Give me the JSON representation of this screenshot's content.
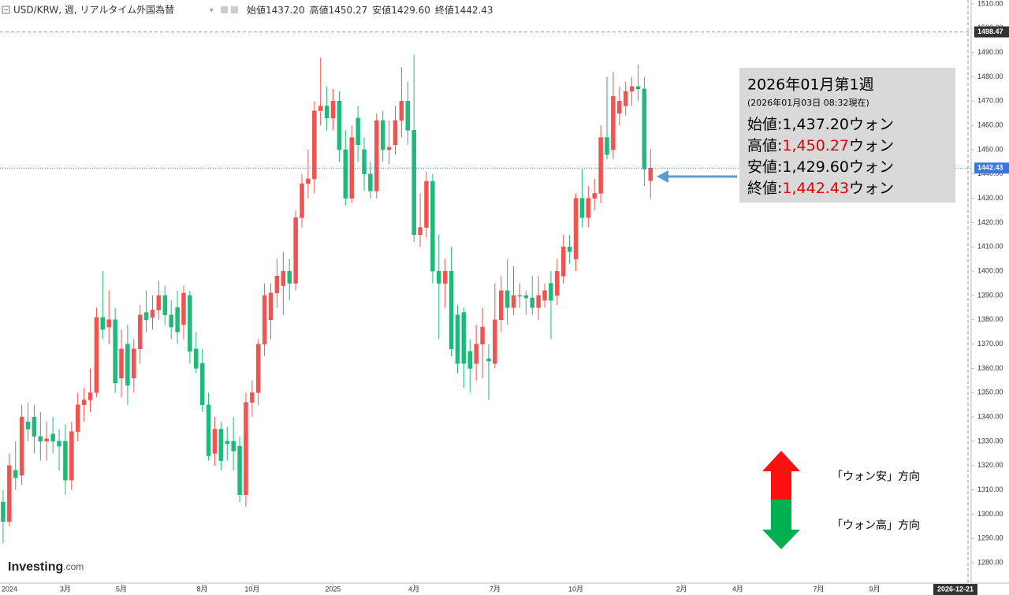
{
  "chart_data": {
    "type": "candlestick",
    "title": "USD/KRW, 週, リアルタイム外国為替",
    "legend": {
      "labels": [
        "始値",
        "高値",
        "安値",
        "終値"
      ],
      "values": [
        "1437.20",
        "1450.27",
        "1429.60",
        "1442.43"
      ]
    },
    "colors": {
      "up": "#f05350",
      "down": "#1fb97a"
    },
    "open": [
      1305,
      1297,
      1318,
      1316,
      1338,
      1340,
      1332,
      1330,
      1333,
      1330,
      1330,
      1314,
      1334,
      1345,
      1347,
      1350,
      1381,
      1377,
      1380,
      1356,
      1370,
      1356,
      1368,
      1383,
      1381,
      1384,
      1390,
      1382,
      1385,
      1378,
      1390,
      1368,
      1362,
      1345,
      1325,
      1335,
      1330,
      1330,
      1328,
      1308,
      1346,
      1350,
      1370,
      1380,
      1391,
      1394,
      1400,
      1395,
      1422,
      1436,
      1438,
      1466,
      1468,
      1463,
      1470,
      1450,
      1430,
      1463,
      1450,
      1440,
      1433,
      1462,
      1450,
      1452,
      1462,
      1470,
      1458,
      1415,
      1418,
      1437,
      1400,
      1395,
      1400,
      1382,
      1383,
      1367,
      1362,
      1370,
      1364,
      1362,
      1380,
      1392,
      1385,
      1390,
      1390,
      1389,
      1385,
      1388,
      1395,
      1390,
      1398,
      1410,
      1405,
      1430,
      1422,
      1430,
      1432,
      1455,
      1450,
      1465,
      1468,
      1474,
      1476,
      1475,
      1437.2
    ],
    "high": [
      1310,
      1325,
      1330,
      1345,
      1346,
      1345,
      1342,
      1338,
      1340,
      1335,
      1337,
      1338,
      1350,
      1352,
      1360,
      1385,
      1400,
      1392,
      1385,
      1376,
      1378,
      1372,
      1386,
      1392,
      1390,
      1396,
      1394,
      1388,
      1392,
      1394,
      1392,
      1375,
      1368,
      1350,
      1340,
      1338,
      1336,
      1340,
      1332,
      1350,
      1355,
      1372,
      1395,
      1395,
      1405,
      1408,
      1405,
      1425,
      1440,
      1450,
      1470,
      1488,
      1476,
      1475,
      1474,
      1458,
      1460,
      1468,
      1455,
      1445,
      1465,
      1466,
      1462,
      1468,
      1484,
      1478,
      1489,
      1432,
      1441,
      1440,
      1415,
      1405,
      1410,
      1386,
      1385,
      1372,
      1378,
      1385,
      1370,
      1395,
      1398,
      1405,
      1402,
      1395,
      1392,
      1398,
      1398,
      1395,
      1400,
      1405,
      1415,
      1415,
      1432,
      1442,
      1435,
      1438,
      1460,
      1480,
      1482,
      1476,
      1478,
      1480,
      1485,
      1480,
      1450.27
    ],
    "low": [
      1288,
      1295,
      1310,
      1312,
      1330,
      1325,
      1322,
      1322,
      1325,
      1318,
      1308,
      1310,
      1330,
      1338,
      1342,
      1348,
      1372,
      1370,
      1350,
      1348,
      1345,
      1350,
      1362,
      1375,
      1376,
      1380,
      1378,
      1372,
      1370,
      1372,
      1362,
      1358,
      1342,
      1322,
      1320,
      1318,
      1322,
      1318,
      1305,
      1303,
      1340,
      1345,
      1365,
      1372,
      1385,
      1382,
      1388,
      1392,
      1418,
      1430,
      1432,
      1460,
      1458,
      1458,
      1445,
      1427,
      1428,
      1445,
      1433,
      1430,
      1430,
      1445,
      1444,
      1448,
      1455,
      1452,
      1412,
      1410,
      1414,
      1395,
      1372,
      1385,
      1365,
      1358,
      1352,
      1350,
      1355,
      1356,
      1347,
      1360,
      1375,
      1378,
      1382,
      1385,
      1382,
      1382,
      1380,
      1385,
      1372,
      1386,
      1395,
      1403,
      1400,
      1418,
      1418,
      1425,
      1428,
      1446,
      1446,
      1460,
      1464,
      1468,
      1470,
      1435,
      1429.6
    ],
    "close": [
      1297,
      1320,
      1315,
      1340,
      1335,
      1332,
      1330,
      1331,
      1330,
      1328,
      1314,
      1334,
      1345,
      1347,
      1350,
      1381,
      1376,
      1380,
      1354,
      1368,
      1353,
      1368,
      1382,
      1380,
      1384,
      1390,
      1382,
      1377,
      1375,
      1391,
      1367,
      1360,
      1345,
      1324,
      1335,
      1322,
      1329,
      1326,
      1308,
      1346,
      1350,
      1370,
      1390,
      1391,
      1398,
      1400,
      1395,
      1422,
      1436,
      1438,
      1466,
      1468,
      1463,
      1470,
      1450,
      1430,
      1455,
      1452,
      1440,
      1433,
      1462,
      1450,
      1451,
      1462,
      1470,
      1458,
      1415,
      1418,
      1437,
      1400,
      1395,
      1400,
      1368,
      1362,
      1362,
      1360,
      1370,
      1377,
      1363,
      1380,
      1392,
      1385,
      1390,
      1390,
      1389,
      1385,
      1390,
      1392,
      1388,
      1400,
      1410,
      1408,
      1430,
      1422,
      1430,
      1432,
      1455,
      1448,
      1472,
      1470,
      1474,
      1476,
      1475,
      1442,
      1442.43
    ],
    "xlim": [
      -0.5,
      155.5
    ],
    "xticks": [
      {
        "value": 1,
        "label": "2024"
      },
      {
        "value": 10,
        "label": "3月"
      },
      {
        "value": 19,
        "label": "5月"
      },
      {
        "value": 32,
        "label": "8月"
      },
      {
        "value": 40,
        "label": "10月"
      },
      {
        "value": 53,
        "label": "2025"
      },
      {
        "value": 66,
        "label": "4月"
      },
      {
        "value": 79,
        "label": "7月"
      },
      {
        "value": 92,
        "label": "10月"
      },
      {
        "value": 109,
        "label": "2月"
      },
      {
        "value": 118,
        "label": "4月"
      },
      {
        "value": 131,
        "label": "7月"
      },
      {
        "value": 140,
        "label": "9月"
      }
    ],
    "ylim": [
      1271.6,
      1511.6
    ],
    "yticks": [
      {
        "value": 1280,
        "label": "1280.00"
      },
      {
        "value": 1290,
        "label": "1290.00"
      },
      {
        "value": 1300,
        "label": "1300.00"
      },
      {
        "value": 1310,
        "label": "1310.00"
      },
      {
        "value": 1320,
        "label": "1320.00"
      },
      {
        "value": 1330,
        "label": "1330.00"
      },
      {
        "value": 1340,
        "label": "1340.00"
      },
      {
        "value": 1350,
        "label": "1350.00"
      },
      {
        "value": 1360,
        "label": "1360.00"
      },
      {
        "value": 1370,
        "label": "1370.00"
      },
      {
        "value": 1380,
        "label": "1380.00"
      },
      {
        "value": 1390,
        "label": "1390.00"
      },
      {
        "value": 1400,
        "label": "1400.00"
      },
      {
        "value": 1410,
        "label": "1410.00"
      },
      {
        "value": 1420,
        "label": "1420.00"
      },
      {
        "value": 1430,
        "label": "1430.00"
      },
      {
        "value": 1440,
        "label": "1440.00"
      },
      {
        "value": 1450,
        "label": "1450.00"
      },
      {
        "value": 1460,
        "label": "1460.00"
      },
      {
        "value": 1470,
        "label": "1470.00"
      },
      {
        "value": 1480,
        "label": "1480.00"
      },
      {
        "value": 1490,
        "label": "1490.00"
      },
      {
        "value": 1500,
        "label": "1500.00"
      },
      {
        "value": 1510,
        "label": "1510.00"
      }
    ],
    "price_line": 1498.47,
    "cursor_date": "2026-12-21",
    "grid": false
  },
  "annotation": {
    "title": "2026年01月第1週",
    "subtitle": "(2026年01月03日 08:32現在)",
    "rows": [
      {
        "label": "始値:",
        "value": "1,437.20",
        "unit": "ウォン",
        "highlight": false
      },
      {
        "label": "高値:",
        "value": "1,450.27",
        "unit": "ウォン",
        "highlight": true
      },
      {
        "label": "安値:",
        "value": "1,429.60",
        "unit": "ウォン",
        "highlight": false
      },
      {
        "label": "終値:",
        "value": "1,442.43",
        "unit": "ウォン",
        "highlight": true
      }
    ],
    "up_label": "「ウォン安」方向",
    "down_label": "「ウォン高」方向"
  },
  "logo": {
    "brand": "Investing",
    "suffix": ".com"
  }
}
